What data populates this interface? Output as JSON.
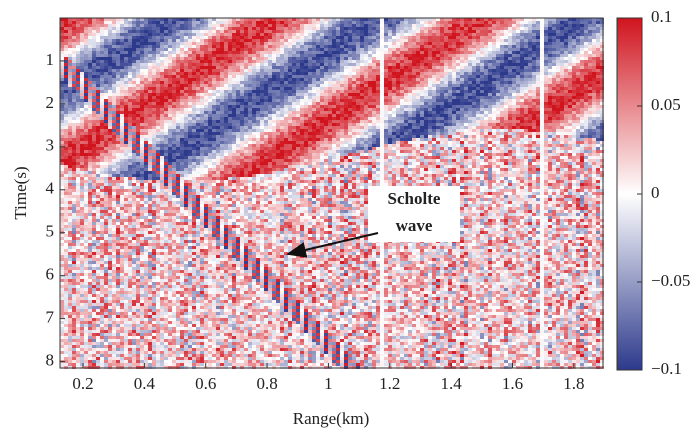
{
  "chart_data": {
    "type": "heatmap",
    "xlabel": "Range(km)",
    "ylabel": "Time(s)",
    "xlim": [
      0.125,
      1.895
    ],
    "xticks": [
      0.2,
      0.4,
      0.6,
      0.8,
      1,
      1.2,
      1.4,
      1.6,
      1.8
    ],
    "ylim": [
      0,
      8.15
    ],
    "yticks": [
      1,
      2,
      3,
      4,
      5,
      6,
      7,
      8
    ],
    "colorbar": {
      "lim": [
        -0.1,
        0.1
      ],
      "ticks": [
        0.1,
        0.05,
        0,
        {
          "value": -0.05,
          "label": "−0.05"
        },
        {
          "value": -0.1,
          "label": "−0.1"
        }
      ],
      "colors": [
        "#2d3a8c",
        "#ffffff",
        "#d0141e"
      ]
    },
    "annotation": {
      "lines": [
        "Scholte",
        "wave"
      ]
    }
  }
}
